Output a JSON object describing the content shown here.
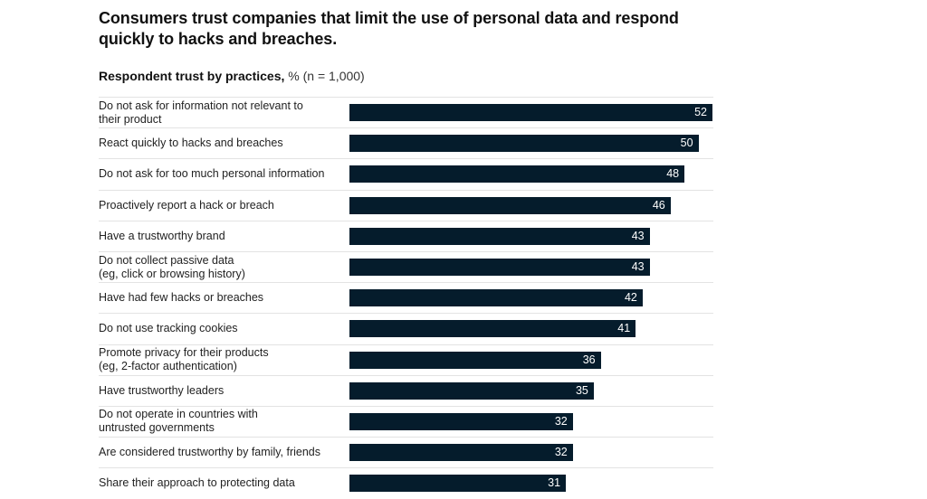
{
  "chart_data": {
    "type": "bar",
    "orientation": "horizontal",
    "title": "Consumers trust companies that limit the use of personal data and respond quickly to hacks and breaches.",
    "subtitle_bold": "Respondent trust by practices,",
    "subtitle_unit": "% (n = 1,000)",
    "xlabel": "",
    "ylabel": "",
    "xlim": [
      0,
      52
    ],
    "grid": false,
    "legend": "none",
    "bar_color": "#051c2c",
    "categories": [
      "Do not ask for information not relevant to\ntheir product",
      "React quickly to hacks and breaches",
      "Do not ask for too much personal information",
      "Proactively report a hack or breach",
      "Have a trustworthy brand",
      "Do not collect passive data\n(eg, click or browsing history)",
      "Have had few hacks or breaches",
      "Do not use tracking cookies",
      "Promote privacy for their products\n(eg, 2-factor authentication)",
      "Have trustworthy leaders",
      "Do not operate in countries with\nuntrusted governments",
      "Are considered trustworthy by family, friends",
      "Share their approach to protecting data"
    ],
    "values": [
      52,
      50,
      48,
      46,
      43,
      43,
      42,
      41,
      36,
      35,
      32,
      32,
      31
    ]
  }
}
